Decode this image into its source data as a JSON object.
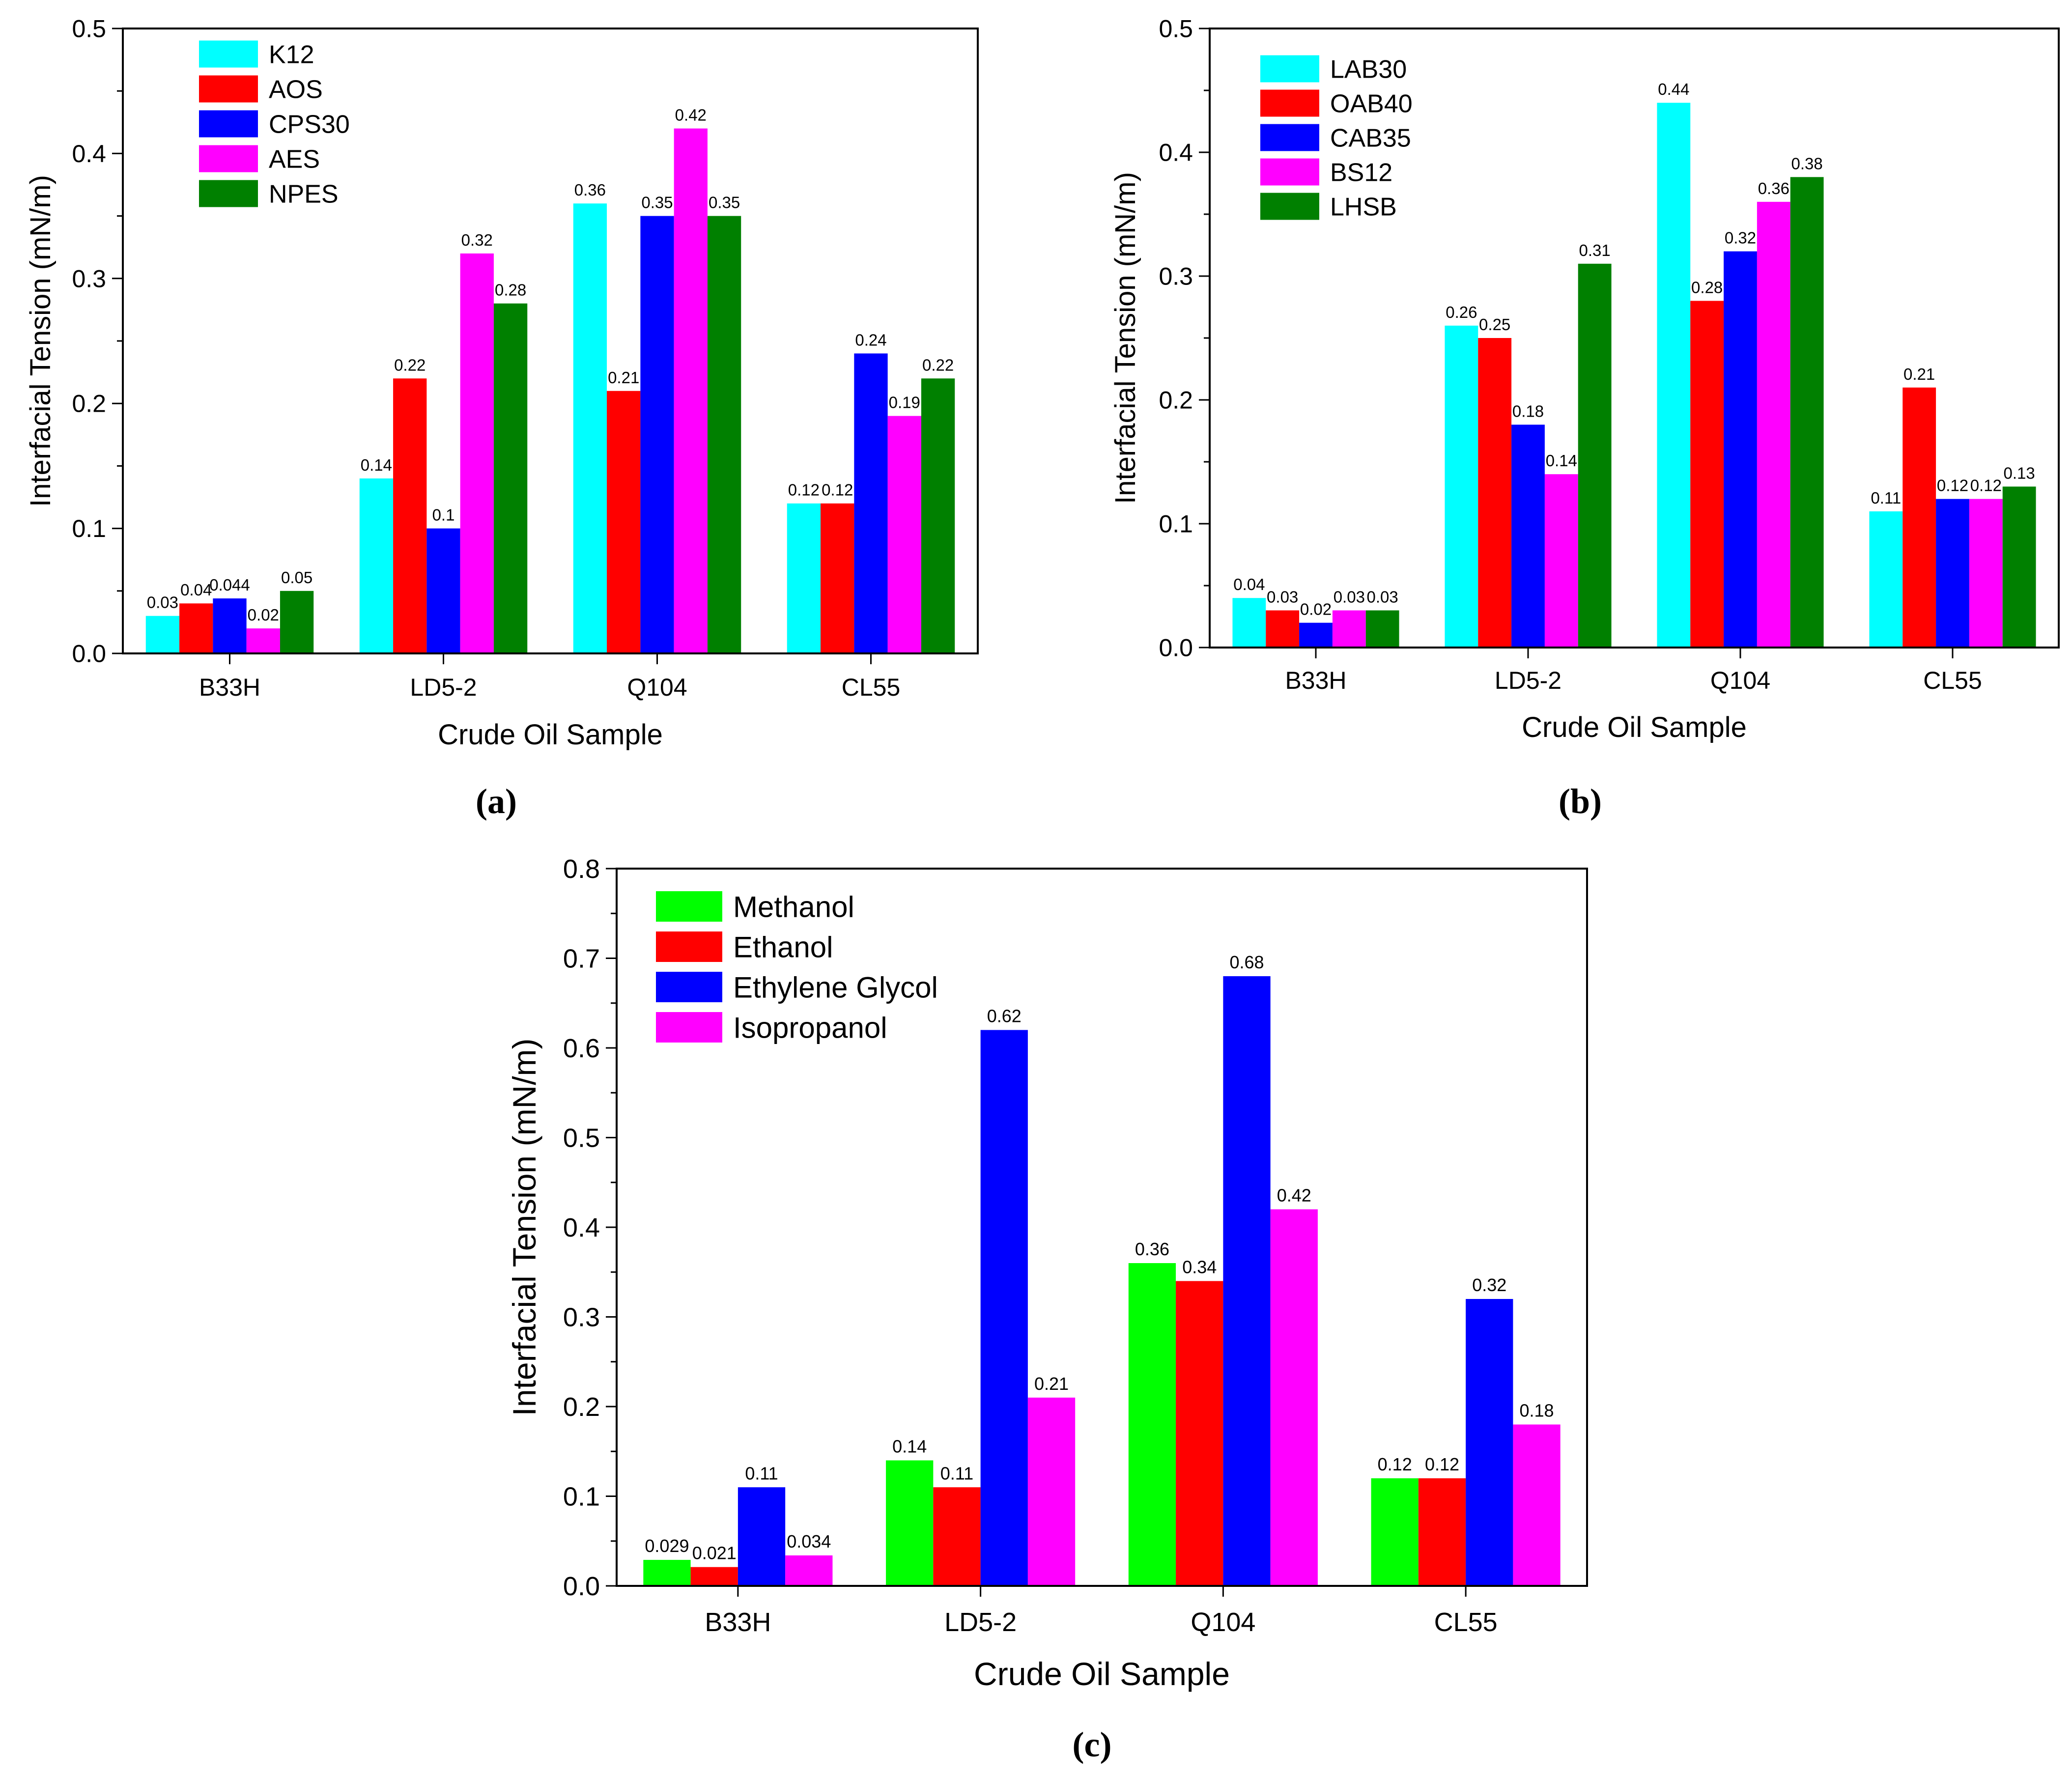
{
  "chart_data": [
    {
      "type": "bar",
      "panel_label": "(a)",
      "panel_letter": "a",
      "xlabel": "Crude Oil Sample",
      "ylabel": "Interfacial Tension (mN/m)",
      "ylim": [
        0,
        0.5
      ],
      "yticks": [
        "0.0",
        "0.1",
        "0.2",
        "0.3",
        "0.4",
        "0.5"
      ],
      "categories": [
        "B33H",
        "LD5-2",
        "Q104",
        "CL55"
      ],
      "legend_position": "top-left",
      "series": [
        {
          "name": "K12",
          "color": "#00FFFF",
          "values": [
            0.03,
            0.14,
            0.36,
            0.12
          ],
          "labels": [
            "0.03",
            "0.14",
            "0.36",
            "0.12"
          ]
        },
        {
          "name": "AOS",
          "color": "#FF0000",
          "values": [
            0.04,
            0.22,
            0.21,
            0.12
          ],
          "labels": [
            "0.04",
            "0.22",
            "0.21",
            "0.12"
          ]
        },
        {
          "name": "CPS30",
          "color": "#0000FF",
          "values": [
            0.044,
            0.1,
            0.35,
            0.24
          ],
          "labels": [
            "0.044",
            "0.1",
            "0.35",
            "0.24"
          ]
        },
        {
          "name": "AES",
          "color": "#FF00FF",
          "values": [
            0.02,
            0.32,
            0.42,
            0.19
          ],
          "labels": [
            "0.02",
            "0.32",
            "0.42",
            "0.19"
          ]
        },
        {
          "name": "NPES",
          "color": "#008000",
          "values": [
            0.05,
            0.28,
            0.35,
            0.22
          ],
          "labels": [
            "0.05",
            "0.28",
            "0.35",
            "0.22"
          ]
        }
      ]
    },
    {
      "type": "bar",
      "panel_label": "(b)",
      "panel_letter": "b",
      "xlabel": "Crude Oil Sample",
      "ylabel": "Interfacial Tension (mN/m)",
      "ylim": [
        0,
        0.5
      ],
      "yticks": [
        "0.0",
        "0.1",
        "0.2",
        "0.3",
        "0.4",
        "0.5"
      ],
      "categories": [
        "B33H",
        "LD5-2",
        "Q104",
        "CL55"
      ],
      "legend_position": "top-left",
      "series": [
        {
          "name": "LAB30",
          "color": "#00FFFF",
          "values": [
            0.04,
            0.26,
            0.44,
            0.11
          ],
          "labels": [
            "0.04",
            "0.26",
            "0.44",
            "0.11"
          ]
        },
        {
          "name": "OAB40",
          "color": "#FF0000",
          "values": [
            0.03,
            0.25,
            0.28,
            0.21
          ],
          "labels": [
            "0.03",
            "0.25",
            "0.28",
            "0.21"
          ]
        },
        {
          "name": "CAB35",
          "color": "#0000FF",
          "values": [
            0.02,
            0.18,
            0.32,
            0.12
          ],
          "labels": [
            "0.02",
            "0.18",
            "0.32",
            "0.12"
          ]
        },
        {
          "name": "BS12",
          "color": "#FF00FF",
          "values": [
            0.03,
            0.14,
            0.36,
            0.12
          ],
          "labels": [
            "0.03",
            "0.14",
            "0.36",
            "0.12"
          ]
        },
        {
          "name": "LHSB",
          "color": "#008000",
          "values": [
            0.03,
            0.31,
            0.38,
            0.13
          ],
          "labels": [
            "0.03",
            "0.31",
            "0.38",
            "0.13"
          ]
        }
      ]
    },
    {
      "type": "bar",
      "panel_label": "(c)",
      "panel_letter": "c",
      "xlabel": "Crude Oil Sample",
      "ylabel": "Interfacial Tension (mN/m)",
      "ylim": [
        0,
        0.8
      ],
      "yticks": [
        "0.0",
        "0.1",
        "0.2",
        "0.3",
        "0.4",
        "0.5",
        "0.6",
        "0.7",
        "0.8"
      ],
      "categories": [
        "B33H",
        "LD5-2",
        "Q104",
        "CL55"
      ],
      "legend_position": "top-left",
      "series": [
        {
          "name": "Methanol",
          "color": "#00FF00",
          "values": [
            0.029,
            0.14,
            0.36,
            0.12
          ],
          "labels": [
            "0.029",
            "0.14",
            "0.36",
            "0.12"
          ]
        },
        {
          "name": "Ethanol",
          "color": "#FF0000",
          "values": [
            0.021,
            0.11,
            0.34,
            0.12
          ],
          "labels": [
            "0.021",
            "0.11",
            "0.34",
            "0.12"
          ]
        },
        {
          "name": "Ethylene Glycol",
          "color": "#0000FF",
          "values": [
            0.11,
            0.62,
            0.68,
            0.32
          ],
          "labels": [
            "0.11",
            "0.62",
            "0.68",
            "0.32"
          ]
        },
        {
          "name": "Isopropanol",
          "color": "#FF00FF",
          "values": [
            0.034,
            0.21,
            0.42,
            0.18
          ],
          "labels": [
            "0.034",
            "0.21",
            "0.42",
            "0.18"
          ]
        }
      ]
    }
  ]
}
